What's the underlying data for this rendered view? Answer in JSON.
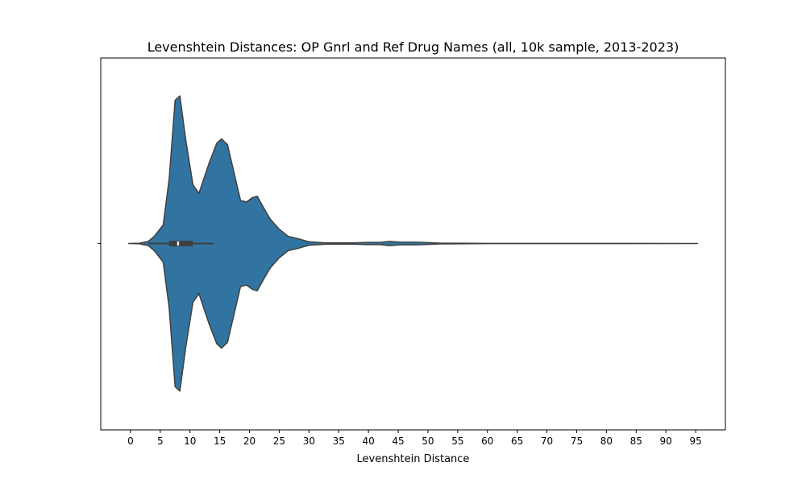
{
  "chart_data": {
    "type": "violin",
    "title": "Levenshtein Distances: OP Gnrl and Ref Drug Names (all, 10k sample, 2013-2023)",
    "xlabel": "Levenshtein Distance",
    "ylabel": "",
    "xlim": [
      -5,
      100
    ],
    "xticks": [
      0,
      5,
      10,
      15,
      20,
      25,
      30,
      35,
      40,
      45,
      50,
      55,
      60,
      65,
      70,
      75,
      80,
      85,
      90,
      95
    ],
    "grid": false,
    "density_relative_width": [
      [
        -0.3,
        0.0
      ],
      [
        1.5,
        0.002
      ],
      [
        3.0,
        0.015
      ],
      [
        4.0,
        0.05
      ],
      [
        5.5,
        0.13
      ],
      [
        6.5,
        0.45
      ],
      [
        7.5,
        1.0
      ],
      [
        8.3,
        1.03
      ],
      [
        9.3,
        0.72
      ],
      [
        10.5,
        0.41
      ],
      [
        11.5,
        0.35
      ],
      [
        13.2,
        0.56
      ],
      [
        14.5,
        0.7
      ],
      [
        15.3,
        0.73
      ],
      [
        16.3,
        0.69
      ],
      [
        18.5,
        0.3
      ],
      [
        19.5,
        0.29
      ],
      [
        20.5,
        0.32
      ],
      [
        21.3,
        0.33
      ],
      [
        22.5,
        0.24
      ],
      [
        23.5,
        0.17
      ],
      [
        25.0,
        0.1
      ],
      [
        26.5,
        0.05
      ],
      [
        28.5,
        0.03
      ],
      [
        30.0,
        0.012
      ],
      [
        33.0,
        0.004
      ],
      [
        37.0,
        0.004
      ],
      [
        40.0,
        0.008
      ],
      [
        42.0,
        0.008
      ],
      [
        43.5,
        0.015
      ],
      [
        45.5,
        0.009
      ],
      [
        48.0,
        0.009
      ],
      [
        50.0,
        0.006
      ],
      [
        52.0,
        0.003
      ],
      [
        55.0,
        0.002
      ],
      [
        60.0,
        0.001
      ],
      [
        95.3,
        0.0
      ]
    ],
    "box": {
      "whisker_low": 3,
      "q1": 6.5,
      "median": 8.0,
      "q3": 10.5,
      "whisker_high": 14
    },
    "colors": {
      "fill": "#3274a1",
      "edge": "#3f3f3f",
      "box": "#3f3f3f",
      "median": "#ffffff"
    }
  }
}
